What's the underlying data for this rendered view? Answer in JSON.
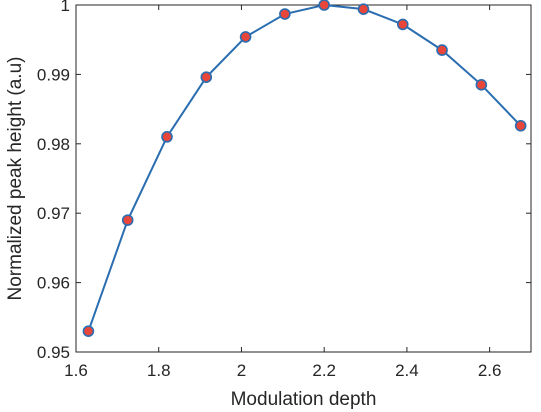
{
  "chart_data": {
    "type": "line",
    "title": "",
    "xlabel": "Modulation depth",
    "ylabel": "Normalized peak height (a.u)",
    "xlim": [
      1.6,
      2.7
    ],
    "ylim": [
      0.95,
      1.0
    ],
    "grid": false,
    "x_ticks": [
      1.6,
      1.8,
      2.0,
      2.2,
      2.4,
      2.6
    ],
    "x_tick_labels": [
      "1.6",
      "1.8",
      "2",
      "2.2",
      "2.4",
      "2.6"
    ],
    "y_ticks": [
      0.95,
      0.96,
      0.97,
      0.98,
      0.99,
      1.0
    ],
    "y_tick_labels": [
      "0.95",
      "0.96",
      "0.97",
      "0.98",
      "0.99",
      "1"
    ],
    "series": [
      {
        "line_color": "#2a6db0",
        "marker_fill": "#e8463a",
        "marker_edge": "#2a6db0",
        "points": [
          {
            "x": 1.63,
            "y": 0.953
          },
          {
            "x": 1.725,
            "y": 0.969
          },
          {
            "x": 1.82,
            "y": 0.981
          },
          {
            "x": 1.915,
            "y": 0.9896
          },
          {
            "x": 2.01,
            "y": 0.9954
          },
          {
            "x": 2.105,
            "y": 0.9987
          },
          {
            "x": 2.2,
            "y": 1.0
          },
          {
            "x": 2.295,
            "y": 0.9994
          },
          {
            "x": 2.39,
            "y": 0.9972
          },
          {
            "x": 2.485,
            "y": 0.9935
          },
          {
            "x": 2.58,
            "y": 0.9885
          },
          {
            "x": 2.675,
            "y": 0.9826
          }
        ]
      }
    ]
  }
}
